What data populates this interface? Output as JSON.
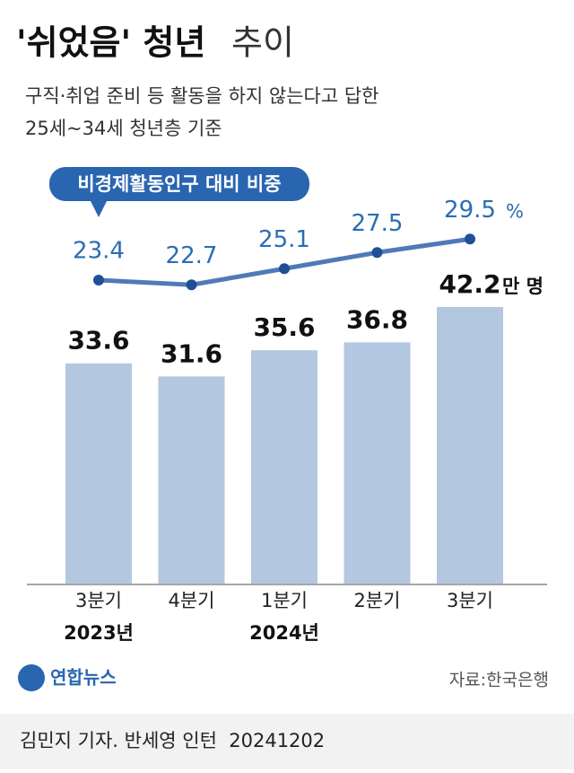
{
  "chart_data": {
    "type": "bar+line",
    "title": [
      "'쉬었음' 청년",
      "추이"
    ],
    "subtitle": [
      "구직·취업 준비 등 활동을 하지 않는다고 답한",
      "25세~34세 청년층 기준"
    ],
    "categories": [
      "3분기",
      "4분기",
      "1분기",
      "2분기",
      "3분기"
    ],
    "years": [
      "2023년",
      null,
      "2024년",
      null,
      null
    ],
    "series": [
      {
        "name": null,
        "type": "bar",
        "color": "#b4c7e0",
        "values": [
          33.6,
          31.6,
          35.6,
          36.8,
          42.2
        ],
        "unit": "만 명"
      },
      {
        "name": "비경제활동인구 대비 비중",
        "type": "line",
        "color": "#4f7ab8",
        "values": [
          23.4,
          22.7,
          25.1,
          27.5,
          29.5
        ],
        "unit": "%"
      }
    ],
    "source": "자료:한국은행",
    "logo": "연합뉴스",
    "credit": "김민지 기자. 반세영 인턴  20241202"
  }
}
